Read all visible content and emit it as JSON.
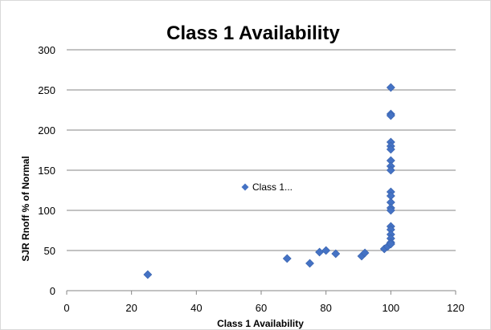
{
  "chart_data": {
    "type": "scatter",
    "title": "Class 1 Availability",
    "xlabel": "Class 1 Availability",
    "ylabel": "SJR Rnoff % of Normal",
    "xlim": [
      0,
      120
    ],
    "ylim": [
      0,
      300
    ],
    "xticks": [
      "0",
      "20",
      "40",
      "60",
      "80",
      "100",
      "120"
    ],
    "yticks": [
      "0",
      "50",
      "100",
      "150",
      "200",
      "250",
      "300"
    ],
    "grid": "horizontal",
    "legend": {
      "label": "Class 1...",
      "placement": "middle-left inside plot"
    },
    "marker_color": "#4472C4",
    "series": [
      {
        "name": "Class 1...",
        "points": [
          [
            25,
            20
          ],
          [
            68,
            40
          ],
          [
            75,
            34
          ],
          [
            78,
            48
          ],
          [
            80,
            50
          ],
          [
            83,
            46
          ],
          [
            91,
            43
          ],
          [
            92,
            47
          ],
          [
            98,
            52
          ],
          [
            99,
            55
          ],
          [
            100,
            253
          ],
          [
            100,
            220
          ],
          [
            100,
            218
          ],
          [
            100,
            185
          ],
          [
            100,
            180
          ],
          [
            100,
            176
          ],
          [
            100,
            162
          ],
          [
            100,
            155
          ],
          [
            100,
            150
          ],
          [
            100,
            123
          ],
          [
            100,
            118
          ],
          [
            100,
            110
          ],
          [
            100,
            103
          ],
          [
            100,
            100
          ],
          [
            100,
            80
          ],
          [
            100,
            76
          ],
          [
            100,
            70
          ],
          [
            100,
            65
          ],
          [
            100,
            60
          ],
          [
            100,
            58
          ]
        ]
      }
    ]
  }
}
